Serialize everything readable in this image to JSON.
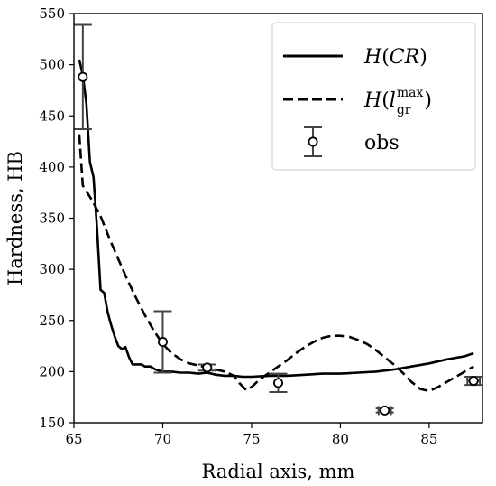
{
  "chart_data": {
    "type": "line",
    "title": "",
    "xlabel": "Radial axis, mm",
    "ylabel": "Hardness, HB",
    "xlim": [
      65,
      88
    ],
    "ylim": [
      150,
      550
    ],
    "xticks": [
      65,
      70,
      75,
      80,
      85
    ],
    "yticks": [
      150,
      200,
      250,
      300,
      350,
      400,
      450,
      500,
      550
    ],
    "grid": false,
    "legend_position": "top-right",
    "legend": {
      "h_cr": {
        "func": "H",
        "lp": "(",
        "arg": "CR",
        "rp": ")"
      },
      "h_lgr": {
        "func": "H",
        "lp": "(",
        "arg": "l",
        "sup": "max",
        "sub": "gr",
        "rp": ")"
      },
      "obs": "obs"
    },
    "series": [
      {
        "key": "h_cr",
        "style": "solid",
        "color": "#000000",
        "x": [
          65.3,
          65.5,
          65.7,
          65.9,
          66.1,
          66.3,
          66.5,
          66.7,
          66.9,
          67.1,
          67.3,
          67.5,
          67.7,
          67.9,
          68.1,
          68.3,
          68.5,
          68.8,
          69.0,
          69.3,
          69.6,
          70.0,
          70.5,
          71.0,
          71.5,
          72.0,
          72.5,
          73.0,
          73.5,
          74.0,
          74.5,
          75.0,
          76.0,
          77.0,
          78.0,
          79.0,
          80.0,
          81.0,
          82.0,
          83.0,
          84.0,
          85.0,
          86.0,
          87.0,
          87.5
        ],
        "y": [
          505,
          490,
          462,
          405,
          390,
          340,
          280,
          277,
          258,
          245,
          234,
          225,
          222,
          224,
          214,
          207,
          207,
          207,
          205,
          205,
          202,
          200,
          200,
          199,
          199,
          198,
          199,
          197,
          196,
          196,
          195,
          195,
          196,
          196,
          197,
          198,
          198,
          199,
          200,
          202,
          205,
          208,
          212,
          215,
          218
        ]
      },
      {
        "key": "h_lgr",
        "style": "dashed",
        "color": "#000000",
        "x": [
          65.3,
          65.5,
          66.0,
          66.5,
          67.0,
          67.5,
          68.0,
          68.5,
          69.0,
          69.5,
          70.0,
          70.5,
          71.0,
          71.5,
          72.0,
          72.5,
          73.0,
          73.5,
          74.0,
          74.3,
          74.7,
          75.0,
          75.5,
          76.0,
          76.5,
          77.0,
          77.5,
          78.0,
          78.5,
          79.0,
          79.5,
          80.0,
          80.5,
          81.0,
          81.5,
          82.0,
          82.5,
          83.0,
          83.5,
          84.0,
          84.5,
          85.0,
          85.5,
          86.0,
          86.5,
          87.0,
          87.5
        ],
        "y": [
          432,
          382,
          368,
          352,
          330,
          310,
          290,
          272,
          255,
          240,
          227,
          218,
          212,
          208,
          206,
          204,
          202,
          200,
          196,
          189,
          182,
          185,
          193,
          199,
          205,
          211,
          218,
          224,
          229,
          233,
          235,
          235,
          234,
          231,
          227,
          221,
          214,
          207,
          199,
          190,
          183,
          181,
          185,
          190,
          195,
          200,
          205
        ]
      }
    ],
    "observations": {
      "key": "obs",
      "x": [
        65.5,
        70.0,
        72.5,
        76.5,
        82.5,
        87.5
      ],
      "y": [
        488,
        229,
        204,
        189,
        162,
        191
      ],
      "y_err": [
        51,
        30,
        3,
        9,
        2,
        4
      ],
      "x_err": [
        0,
        0,
        0,
        0,
        0.35,
        0.35
      ]
    }
  }
}
